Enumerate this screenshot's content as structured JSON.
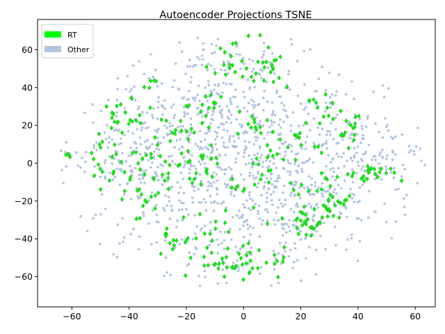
{
  "chart_data": {
    "type": "scatter",
    "title": "Autoencoder Projections TSNE",
    "xlabel": "",
    "ylabel": "",
    "xlim": [
      -72,
      67
    ],
    "ylim": [
      -76,
      76
    ],
    "xticks": [
      -60,
      -40,
      -20,
      0,
      20,
      40,
      60
    ],
    "yticks": [
      -60,
      -40,
      -20,
      0,
      20,
      40,
      60
    ],
    "grid": false,
    "legend": {
      "placement": "top-left",
      "entries": [
        "RT",
        "Other"
      ]
    },
    "series": [
      {
        "name": "Other",
        "color": "#b0c4de",
        "marker": "circle",
        "clusters": [
          {
            "cx": 0,
            "cy": 0,
            "sx": 30,
            "sy": 28,
            "n": 900
          },
          {
            "cx": -12,
            "cy": 30,
            "sx": 10,
            "sy": 10,
            "n": 70
          },
          {
            "cx": 18,
            "cy": -25,
            "sx": 10,
            "sy": 10,
            "n": 70
          },
          {
            "cx": -35,
            "cy": 10,
            "sx": 9,
            "sy": 14,
            "n": 60
          },
          {
            "cx": 40,
            "cy": 10,
            "sx": 9,
            "sy": 12,
            "n": 60
          },
          {
            "cx": -5,
            "cy": 55,
            "sx": 10,
            "sy": 6,
            "n": 40
          },
          {
            "cx": 0,
            "cy": -50,
            "sx": 12,
            "sy": 8,
            "n": 40
          },
          {
            "cx": 55,
            "cy": 3,
            "sx": 5,
            "sy": 6,
            "n": 20
          },
          {
            "cx": -60,
            "cy": 0,
            "sx": 4,
            "sy": 4,
            "n": 10
          }
        ],
        "seed": 7
      },
      {
        "name": "RT",
        "color": "#00ff00",
        "edgecolor": "#33aa33",
        "marker": "diamond",
        "clusters": [
          {
            "cx": -46,
            "cy": 10,
            "sx": 5,
            "sy": 10,
            "n": 30
          },
          {
            "cx": -38,
            "cy": 25,
            "sx": 5,
            "sy": 6,
            "n": 15
          },
          {
            "cx": -25,
            "cy": 15,
            "sx": 4,
            "sy": 4,
            "n": 12
          },
          {
            "cx": -28,
            "cy": -5,
            "sx": 6,
            "sy": 8,
            "n": 25
          },
          {
            "cx": -35,
            "cy": -22,
            "sx": 5,
            "sy": 5,
            "n": 12
          },
          {
            "cx": -25,
            "cy": -43,
            "sx": 4,
            "sy": 4,
            "n": 10
          },
          {
            "cx": -15,
            "cy": -35,
            "sx": 5,
            "sy": 6,
            "n": 15
          },
          {
            "cx": -15,
            "cy": 0,
            "sx": 4,
            "sy": 8,
            "n": 18
          },
          {
            "cx": -10,
            "cy": 30,
            "sx": 4,
            "sy": 8,
            "n": 15
          },
          {
            "cx": -3,
            "cy": 50,
            "sx": 5,
            "sy": 5,
            "n": 12
          },
          {
            "cx": 5,
            "cy": 55,
            "sx": 6,
            "sy": 6,
            "n": 14
          },
          {
            "cx": 2,
            "cy": 20,
            "sx": 4,
            "sy": 5,
            "n": 12
          },
          {
            "cx": 10,
            "cy": 5,
            "sx": 3,
            "sy": 6,
            "n": 12
          },
          {
            "cx": 5,
            "cy": -12,
            "sx": 5,
            "sy": 5,
            "n": 14
          },
          {
            "cx": -5,
            "cy": -50,
            "sx": 7,
            "sy": 6,
            "n": 35
          },
          {
            "cx": 12,
            "cy": -48,
            "sx": 3,
            "sy": 5,
            "n": 8
          },
          {
            "cx": 22,
            "cy": -32,
            "sx": 4,
            "sy": 4,
            "n": 25
          },
          {
            "cx": 32,
            "cy": -22,
            "sx": 3,
            "sy": 4,
            "n": 18
          },
          {
            "cx": 25,
            "cy": -10,
            "sx": 4,
            "sy": 5,
            "n": 15
          },
          {
            "cx": 35,
            "cy": 20,
            "sx": 5,
            "sy": 6,
            "n": 18
          },
          {
            "cx": 25,
            "cy": 30,
            "sx": 4,
            "sy": 4,
            "n": 10
          },
          {
            "cx": 42,
            "cy": -5,
            "sx": 4,
            "sy": 4,
            "n": 15
          },
          {
            "cx": 50,
            "cy": -5,
            "sx": 3,
            "sy": 3,
            "n": 8
          },
          {
            "cx": 12,
            "cy": 45,
            "sx": 4,
            "sy": 5,
            "n": 10
          },
          {
            "cx": 20,
            "cy": 10,
            "sx": 4,
            "sy": 5,
            "n": 10
          },
          {
            "cx": -62,
            "cy": 4,
            "sx": 1.5,
            "sy": 1,
            "n": 4
          },
          {
            "cx": -33,
            "cy": 42,
            "sx": 2,
            "sy": 2,
            "n": 5
          }
        ],
        "seed": 19
      }
    ]
  }
}
